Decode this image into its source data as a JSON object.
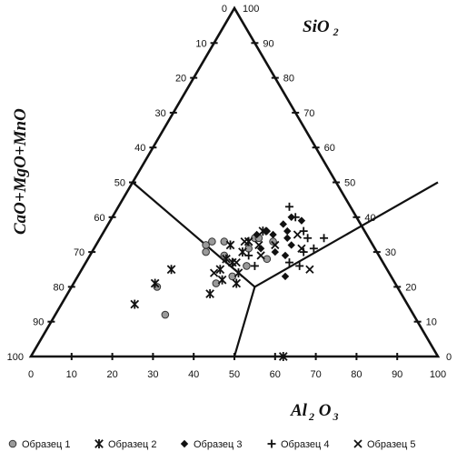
{
  "chart_data": {
    "type": "scatter",
    "subtype": "ternary",
    "axes": {
      "top": {
        "label_main": "SiO",
        "label_sub": "2"
      },
      "left": {
        "label": "CaO+MgO+MnO"
      },
      "bottom": {
        "label_main": "Al",
        "label_sub1": "2",
        "label_mid": " O",
        "label_sub2": "3"
      }
    },
    "ticks": {
      "left_edge": [
        "0",
        "10",
        "20",
        "30",
        "40",
        "50",
        "60",
        "70",
        "80",
        "90",
        "100"
      ],
      "right_edge": [
        "100",
        "90",
        "80",
        "70",
        "60",
        "50",
        "40",
        "30",
        "20",
        "10",
        "0"
      ],
      "bottom_edge": [
        "0",
        "10",
        "20",
        "30",
        "40",
        "50",
        "60",
        "70",
        "80",
        "90",
        "100"
      ]
    },
    "boundary_lines": [
      {
        "from": {
          "al2o3": 0,
          "sio2": 50
        },
        "to": {
          "al2o3": 45,
          "sio2": 20
        }
      },
      {
        "from": {
          "al2o3": 45,
          "sio2": 20
        },
        "to": {
          "al2o3": 75,
          "sio2": 50
        }
      },
      {
        "from": {
          "al2o3": 45,
          "sio2": 20
        },
        "to": {
          "al2o3": 50,
          "sio2": 0
        }
      }
    ],
    "series": [
      {
        "name": "Образец 1",
        "marker": "circle",
        "color": "#9a9a9a",
        "points": [
          {
            "al2o3": 27,
            "sio2": 32
          },
          {
            "al2o3": 28,
            "sio2": 30
          },
          {
            "al2o3": 28,
            "sio2": 33
          },
          {
            "al2o3": 31,
            "sio2": 33
          },
          {
            "al2o3": 33,
            "sio2": 29
          },
          {
            "al2o3": 35,
            "sio2": 21
          },
          {
            "al2o3": 38,
            "sio2": 31
          },
          {
            "al2o3": 38,
            "sio2": 23
          },
          {
            "al2o3": 38,
            "sio2": 34
          },
          {
            "al2o3": 39,
            "sio2": 34
          },
          {
            "al2o3": 40,
            "sio2": 26
          },
          {
            "al2o3": 43,
            "sio2": 33
          },
          {
            "al2o3": 44,
            "sio2": 28
          },
          {
            "al2o3": 21,
            "sio2": 20
          },
          {
            "al2o3": 27,
            "sio2": 12
          }
        ]
      },
      {
        "name": "Образец 2",
        "marker": "asterisk",
        "color": "#111111",
        "points": [
          {
            "al2o3": 22,
            "sio2": 25
          },
          {
            "al2o3": 20,
            "sio2": 21
          },
          {
            "al2o3": 18,
            "sio2": 15
          },
          {
            "al2o3": 33,
            "sio2": 32
          },
          {
            "al2o3": 34,
            "sio2": 28
          },
          {
            "al2o3": 34,
            "sio2": 25
          },
          {
            "al2o3": 36,
            "sio2": 22
          },
          {
            "al2o3": 35,
            "sio2": 18
          },
          {
            "al2o3": 36,
            "sio2": 27
          },
          {
            "al2o3": 37,
            "sio2": 33
          },
          {
            "al2o3": 37,
            "sio2": 30
          },
          {
            "al2o3": 39,
            "sio2": 24
          },
          {
            "al2o3": 40,
            "sio2": 21
          },
          {
            "al2o3": 39,
            "sio2": 36
          },
          {
            "al2o3": 62,
            "sio2": 0
          }
        ]
      },
      {
        "name": "Образец 3",
        "marker": "diamond",
        "color": "#111111",
        "points": [
          {
            "al2o3": 38,
            "sio2": 35
          },
          {
            "al2o3": 40,
            "sio2": 36
          },
          {
            "al2o3": 42,
            "sio2": 35
          },
          {
            "al2o3": 43,
            "sio2": 38
          },
          {
            "al2o3": 44,
            "sio2": 40
          },
          {
            "al2o3": 45,
            "sio2": 36
          },
          {
            "al2o3": 46,
            "sio2": 34
          },
          {
            "al2o3": 47,
            "sio2": 39
          },
          {
            "al2o3": 48,
            "sio2": 32
          },
          {
            "al2o3": 45,
            "sio2": 30
          },
          {
            "al2o3": 41,
            "sio2": 31
          },
          {
            "al2o3": 51,
            "sio2": 23
          },
          {
            "al2o3": 48,
            "sio2": 29
          }
        ]
      },
      {
        "name": "Образец 4",
        "marker": "plus",
        "color": "#111111",
        "points": [
          {
            "al2o3": 42,
            "sio2": 43
          },
          {
            "al2o3": 45,
            "sio2": 40
          },
          {
            "al2o3": 49,
            "sio2": 36
          },
          {
            "al2o3": 51,
            "sio2": 34
          },
          {
            "al2o3": 52,
            "sio2": 30
          },
          {
            "al2o3": 54,
            "sio2": 31
          },
          {
            "al2o3": 55,
            "sio2": 34
          },
          {
            "al2o3": 53,
            "sio2": 26
          },
          {
            "al2o3": 50,
            "sio2": 27
          },
          {
            "al2o3": 39,
            "sio2": 29
          },
          {
            "al2o3": 42,
            "sio2": 26
          }
        ]
      },
      {
        "name": "Образец 5",
        "marker": "x",
        "color": "#111111",
        "points": [
          {
            "al2o3": 36,
            "sio2": 33
          },
          {
            "al2o3": 40,
            "sio2": 32
          },
          {
            "al2o3": 42,
            "sio2": 29
          },
          {
            "al2o3": 44,
            "sio2": 32
          },
          {
            "al2o3": 48,
            "sio2": 35
          },
          {
            "al2o3": 51,
            "sio2": 31
          },
          {
            "al2o3": 56,
            "sio2": 25
          },
          {
            "al2o3": 33,
            "sio2": 24
          },
          {
            "al2o3": 37,
            "sio2": 27
          }
        ]
      }
    ],
    "legend": {
      "position": "bottom"
    }
  }
}
